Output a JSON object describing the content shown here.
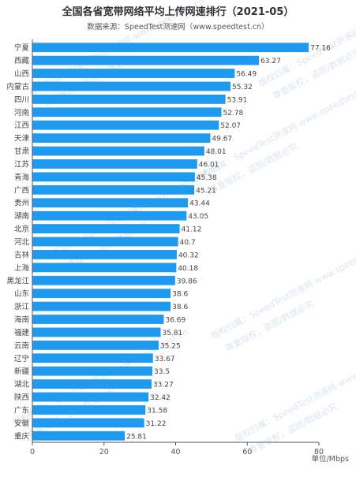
{
  "chart_title": "全国各省宽带网络平均上传网速排行（2021-05）",
  "chart_subtitle": "数据来源：SpeedTest测速网（www.speedtest.cn）",
  "watermark": {
    "line1": "版权归属：SpeedTest测速网-www.speedtest.cn",
    "line2": "尊重版权，盗图/数据必究"
  },
  "colors": {
    "bar": "#1e9bf0",
    "axis": "#555555",
    "grid": "#e6e6e6",
    "watermark": "#3a6cb0"
  },
  "chart_data": {
    "type": "bar",
    "orientation": "horizontal",
    "title": "全国各省宽带网络平均上传网速排行（2021-05）",
    "subtitle": "数据来源：SpeedTest测速网（www.speedtest.cn）",
    "xlabel": "单位/Mbps",
    "ylabel": "",
    "xlim": [
      0,
      80
    ],
    "xticks": [
      0,
      20,
      40,
      60,
      80
    ],
    "grid": false,
    "categories": [
      "宁夏",
      "西藏",
      "山西",
      "内蒙古",
      "四川",
      "河南",
      "江西",
      "天津",
      "甘肃",
      "江苏",
      "青海",
      "广西",
      "贵州",
      "湖南",
      "北京",
      "河北",
      "吉林",
      "上海",
      "黑龙江",
      "山东",
      "浙江",
      "海南",
      "福建",
      "云南",
      "辽宁",
      "新疆",
      "湖北",
      "陕西",
      "广东",
      "安徽",
      "重庆"
    ],
    "values": [
      77.16,
      63.27,
      56.49,
      55.32,
      53.91,
      52.78,
      52.07,
      49.67,
      48.01,
      46.01,
      45.38,
      45.21,
      43.44,
      43.05,
      41.12,
      40.7,
      40.32,
      40.18,
      39.86,
      38.6,
      38.6,
      36.69,
      35.81,
      35.25,
      33.67,
      33.5,
      33.27,
      32.42,
      31.58,
      31.22,
      25.81
    ],
    "value_labels": [
      "77.16",
      "63.27",
      "56.49",
      "55.32",
      "53.91",
      "52.78",
      "52.07",
      "49.67",
      "48.01",
      "46.01",
      "45.38",
      "45.21",
      "43.44",
      "43.05",
      "41.12",
      "40.7",
      "40.32",
      "40.18",
      "39.86",
      "38.6",
      "38.6",
      "36.69",
      "35.81",
      "35.25",
      "33.67",
      "33.5",
      "33.27",
      "32.42",
      "31.58",
      "31.22",
      "25.81"
    ]
  }
}
